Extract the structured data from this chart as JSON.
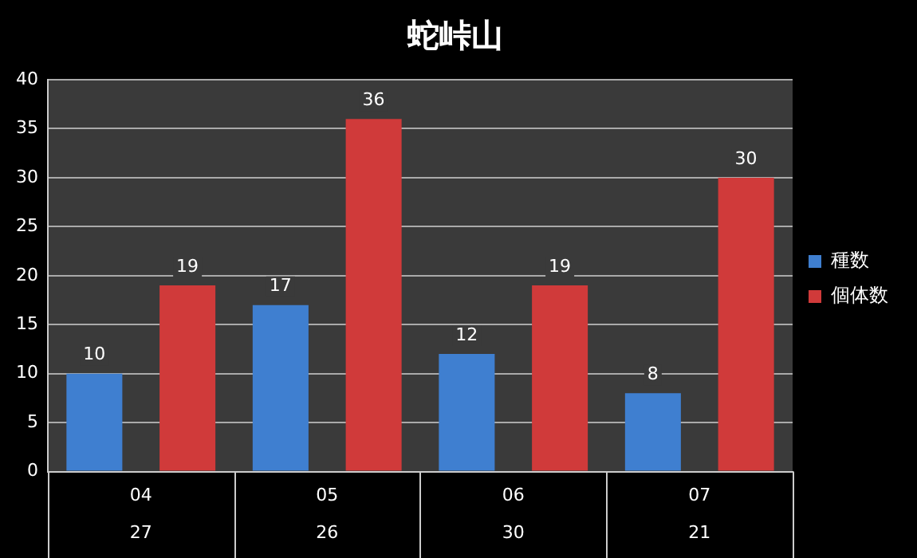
{
  "chart_data": {
    "type": "bar",
    "title": "蛇峠山",
    "categories": [
      "04\n27",
      "05\n26",
      "06\n30",
      "07\n21"
    ],
    "series": [
      {
        "name": "種数",
        "color": "#3f7fd0",
        "values": [
          10,
          17,
          12,
          8
        ]
      },
      {
        "name": "個体数",
        "color": "#d03a3a",
        "values": [
          19,
          36,
          19,
          30
        ]
      }
    ],
    "ylim": [
      0,
      40
    ],
    "yticks": [
      0,
      5,
      10,
      15,
      20,
      25,
      30,
      35,
      40
    ],
    "grid": "y",
    "legend": "right",
    "data_labels": true
  }
}
